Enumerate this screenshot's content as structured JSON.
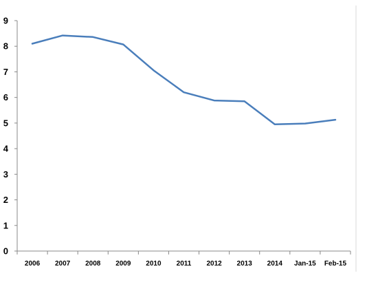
{
  "chart_data": {
    "type": "line",
    "title": "",
    "xlabel": "",
    "ylabel": "",
    "categories": [
      "2006",
      "2007",
      "2008",
      "2009",
      "2010",
      "2011",
      "2012",
      "2013",
      "2014",
      "Jan-15",
      "Feb-15"
    ],
    "series": [
      {
        "values": [
          8.1,
          8.42,
          8.36,
          8.07,
          7.06,
          6.2,
          5.88,
          5.85,
          4.95,
          4.98,
          5.13
        ],
        "color": "#4a7ebb"
      }
    ],
    "ylim": [
      0,
      9
    ],
    "yticks": [
      0,
      1,
      2,
      3,
      4,
      5,
      6,
      7,
      8,
      9
    ],
    "grid": false,
    "legend": "none",
    "colors": {
      "axis": "#888888",
      "right_border": "#d9d9d9",
      "line": "#4a7ebb"
    }
  }
}
